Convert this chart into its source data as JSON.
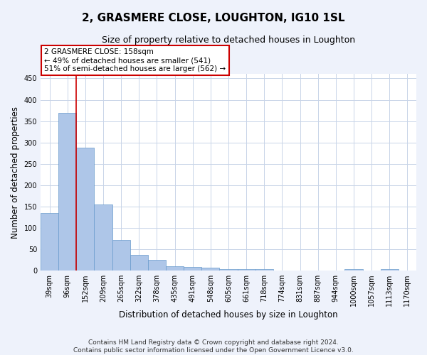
{
  "title": "2, GRASMERE CLOSE, LOUGHTON, IG10 1SL",
  "subtitle": "Size of property relative to detached houses in Loughton",
  "xlabel": "Distribution of detached houses by size in Loughton",
  "ylabel": "Number of detached properties",
  "categories": [
    "39sqm",
    "96sqm",
    "152sqm",
    "209sqm",
    "265sqm",
    "322sqm",
    "378sqm",
    "435sqm",
    "491sqm",
    "548sqm",
    "605sqm",
    "661sqm",
    "718sqm",
    "774sqm",
    "831sqm",
    "887sqm",
    "944sqm",
    "1000sqm",
    "1057sqm",
    "1113sqm",
    "1170sqm"
  ],
  "values": [
    135,
    370,
    288,
    155,
    72,
    37,
    25,
    10,
    8,
    7,
    4,
    4,
    4,
    0,
    0,
    0,
    0,
    4,
    0,
    4,
    0
  ],
  "bar_color": "#aec6e8",
  "bar_edge_color": "#6699cc",
  "vline_x": 1.5,
  "vline_color": "#cc0000",
  "annotation_lines": [
    "2 GRASMERE CLOSE: 158sqm",
    "← 49% of detached houses are smaller (541)",
    "51% of semi-detached houses are larger (562) →"
  ],
  "annotation_box_color": "#cc0000",
  "ylim": [
    0,
    460
  ],
  "yticks": [
    0,
    50,
    100,
    150,
    200,
    250,
    300,
    350,
    400,
    450
  ],
  "footer": "Contains HM Land Registry data © Crown copyright and database right 2024.\nContains public sector information licensed under the Open Government Licence v3.0.",
  "bg_color": "#eef2fb",
  "plot_bg_color": "#ffffff",
  "grid_color": "#c8d4e8",
  "title_fontsize": 11,
  "subtitle_fontsize": 9,
  "axis_label_fontsize": 8.5,
  "tick_fontsize": 7,
  "footer_fontsize": 6.5,
  "ann_fontsize": 7.5
}
